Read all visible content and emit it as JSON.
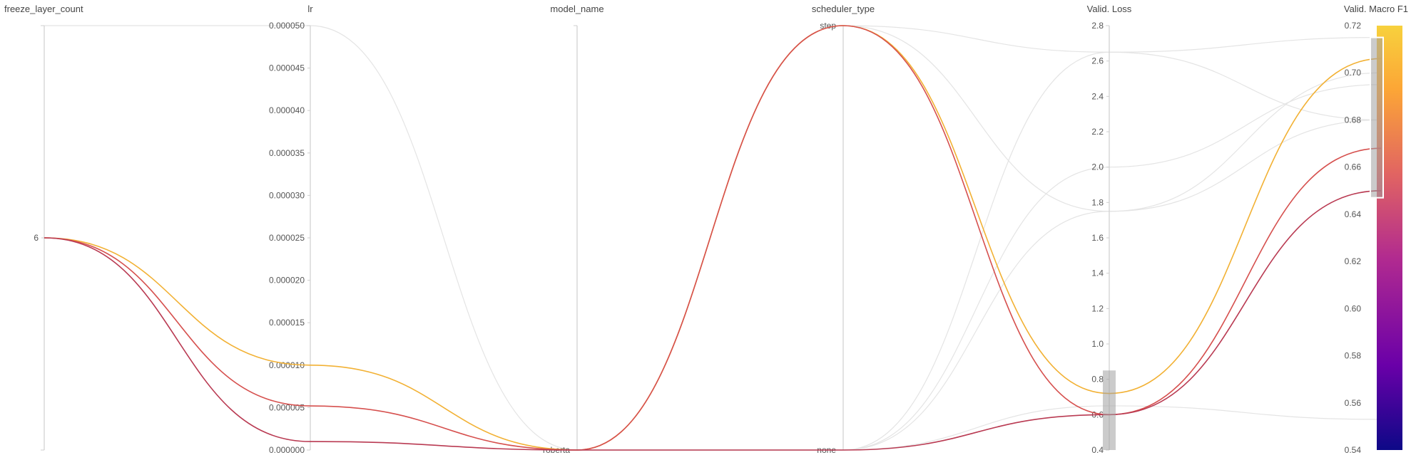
{
  "chart_data": {
    "type": "parallel-coordinates",
    "axes": [
      {
        "name": "freeze_layer_count",
        "kind": "numeric",
        "range": [
          0,
          12
        ],
        "ticks": [
          {
            "value": 6,
            "label": "6"
          }
        ]
      },
      {
        "name": "lr",
        "kind": "numeric",
        "range": [
          0,
          5e-05
        ],
        "ticks": [
          {
            "value": 5e-05,
            "label": "0.000050"
          },
          {
            "value": 4.5e-05,
            "label": "0.000045"
          },
          {
            "value": 4e-05,
            "label": "0.000040"
          },
          {
            "value": 3.5e-05,
            "label": "0.000035"
          },
          {
            "value": 3e-05,
            "label": "0.000030"
          },
          {
            "value": 2.5e-05,
            "label": "0.000025"
          },
          {
            "value": 2e-05,
            "label": "0.000020"
          },
          {
            "value": 1.5e-05,
            "label": "0.000015"
          },
          {
            "value": 1e-05,
            "label": "0.000010"
          },
          {
            "value": 5e-06,
            "label": "0.000005"
          },
          {
            "value": 0,
            "label": "0.000000"
          }
        ]
      },
      {
        "name": "model_name",
        "kind": "categorical",
        "categories": [
          "roberta"
        ]
      },
      {
        "name": "scheduler_type",
        "kind": "categorical",
        "categories": [
          "step",
          "none"
        ]
      },
      {
        "name": "Valid. Loss",
        "kind": "numeric",
        "range": [
          0.4,
          2.8
        ],
        "ticks": [
          {
            "value": 2.8,
            "label": "2.8"
          },
          {
            "value": 2.6,
            "label": "2.6"
          },
          {
            "value": 2.4,
            "label": "2.4"
          },
          {
            "value": 2.2,
            "label": "2.2"
          },
          {
            "value": 2.0,
            "label": "2.0"
          },
          {
            "value": 1.8,
            "label": "1.8"
          },
          {
            "value": 1.6,
            "label": "1.6"
          },
          {
            "value": 1.4,
            "label": "1.4"
          },
          {
            "value": 1.2,
            "label": "1.2"
          },
          {
            "value": 1.0,
            "label": "1.0"
          },
          {
            "value": 0.8,
            "label": "0.8"
          },
          {
            "value": 0.6,
            "label": "0.6"
          },
          {
            "value": 0.4,
            "label": "0.4"
          }
        ],
        "brush": [
          0.4,
          0.85
        ]
      },
      {
        "name": "Valid. Macro F1",
        "kind": "numeric",
        "range": [
          0.54,
          0.72
        ],
        "ticks": [
          {
            "value": 0.72,
            "label": "0.72"
          },
          {
            "value": 0.7,
            "label": "0.70"
          },
          {
            "value": 0.68,
            "label": "0.68"
          },
          {
            "value": 0.66,
            "label": "0.66"
          },
          {
            "value": 0.64,
            "label": "0.64"
          },
          {
            "value": 0.62,
            "label": "0.62"
          },
          {
            "value": 0.6,
            "label": "0.60"
          },
          {
            "value": 0.58,
            "label": "0.58"
          },
          {
            "value": 0.56,
            "label": "0.56"
          },
          {
            "value": 0.54,
            "label": "0.54"
          }
        ],
        "brush": [
          0.647,
          0.715
        ],
        "colorscale": [
          "#0d0887",
          "#6a00a8",
          "#b12a90",
          "#e16462",
          "#fca636",
          "#f0f921"
        ]
      }
    ],
    "runs": [
      {
        "values": [
          6,
          1e-05,
          "roberta",
          "step",
          0.72,
          0.706
        ],
        "color": "#f2b134",
        "highlighted": true
      },
      {
        "values": [
          6,
          5.2e-06,
          "roberta",
          "step",
          0.6,
          0.668
        ],
        "color": "#d6504e",
        "highlighted": true
      },
      {
        "values": [
          6,
          1e-06,
          "roberta",
          "none",
          0.6,
          0.65
        ],
        "color": "#b93a52",
        "highlighted": true
      },
      {
        "values": [
          12,
          5e-05,
          "roberta",
          "step",
          1.75,
          0.7
        ],
        "color": "#e4e4e4",
        "highlighted": false
      },
      {
        "values": [
          null,
          null,
          "roberta",
          "step",
          2.65,
          0.68
        ],
        "color": "#e4e4e4",
        "highlighted": false
      },
      {
        "values": [
          null,
          null,
          "roberta",
          "none",
          2.0,
          0.695
        ],
        "color": "#e4e4e4",
        "highlighted": false
      },
      {
        "values": [
          null,
          null,
          "roberta",
          "none",
          1.75,
          0.68
        ],
        "color": "#e4e4e4",
        "highlighted": false
      },
      {
        "values": [
          null,
          null,
          "roberta",
          "none",
          2.65,
          0.715
        ],
        "color": "#e4e4e4",
        "highlighted": false
      },
      {
        "values": [
          null,
          null,
          "roberta",
          "none",
          0.65,
          0.553
        ],
        "color": "#e4e4e4",
        "highlighted": false
      }
    ]
  }
}
